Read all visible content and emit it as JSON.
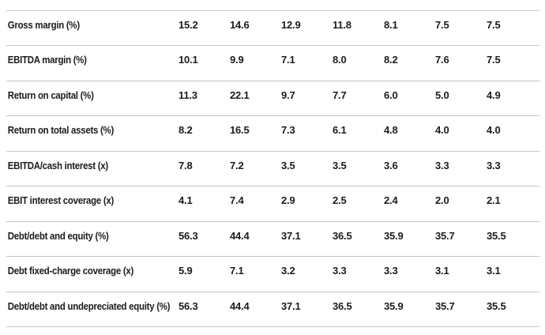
{
  "colors": {
    "text_primary": "#1c1c1c",
    "divider": "#c6c6c6",
    "background": "#ffffff"
  },
  "table": {
    "rows": [
      {
        "label": "Gross margin (%)",
        "values": [
          "15.2",
          "14.6",
          "12.9",
          "11.8",
          "8.1",
          "7.5",
          "7.5"
        ]
      },
      {
        "label": "EBITDA margin (%)",
        "values": [
          "10.1",
          "9.9",
          "7.1",
          "8.0",
          "8.2",
          "7.6",
          "7.5"
        ]
      },
      {
        "label": "Return on capital (%)",
        "values": [
          "11.3",
          "22.1",
          "9.7",
          "7.7",
          "6.0",
          "5.0",
          "4.9"
        ]
      },
      {
        "label": "Return on total assets (%)",
        "values": [
          "8.2",
          "16.5",
          "7.3",
          "6.1",
          "4.8",
          "4.0",
          "4.0"
        ]
      },
      {
        "label": "EBITDA/cash interest (x)",
        "values": [
          "7.8",
          "7.2",
          "3.5",
          "3.5",
          "3.6",
          "3.3",
          "3.3"
        ]
      },
      {
        "label": "EBIT interest coverage (x)",
        "values": [
          "4.1",
          "7.4",
          "2.9",
          "2.5",
          "2.4",
          "2.0",
          "2.1"
        ]
      },
      {
        "label": "Debt/debt and equity (%)",
        "values": [
          "56.3",
          "44.4",
          "37.1",
          "36.5",
          "35.9",
          "35.7",
          "35.5"
        ]
      },
      {
        "label": "Debt fixed-charge coverage (x)",
        "values": [
          "5.9",
          "7.1",
          "3.2",
          "3.3",
          "3.3",
          "3.1",
          "3.1"
        ]
      },
      {
        "label": "Debt/debt and undepreciated equity (%)",
        "values": [
          "56.3",
          "44.4",
          "37.1",
          "36.5",
          "35.9",
          "35.7",
          "35.5"
        ]
      }
    ]
  }
}
